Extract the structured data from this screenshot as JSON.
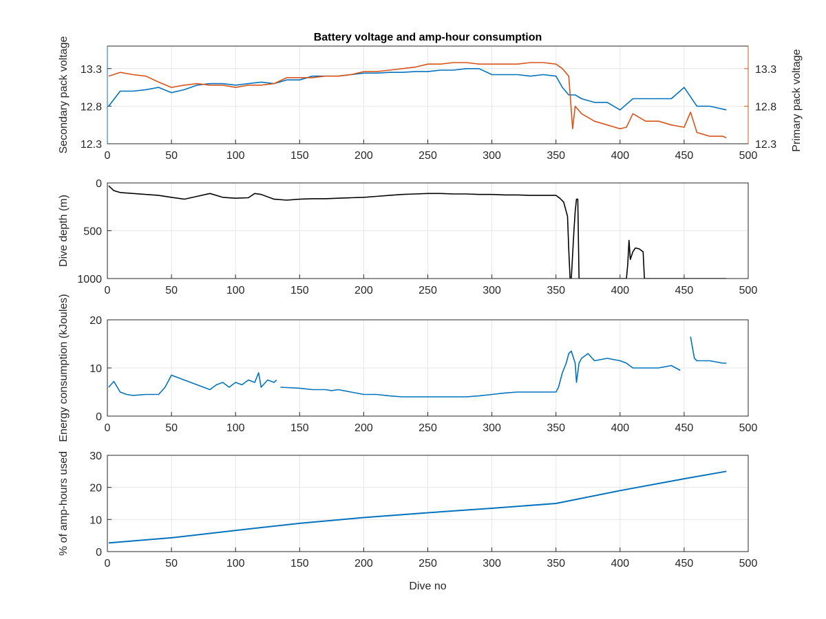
{
  "chart_data": [
    {
      "type": "line",
      "title": "Battery voltage and amp-hour consumption",
      "xlabel": "",
      "ylabel": "Secondary pack voltage",
      "ylabel_right": "Primary pack voltage",
      "xlim": [
        0,
        500
      ],
      "ylim": [
        12.3,
        13.6
      ],
      "ylim_right": [
        12.3,
        13.6
      ],
      "xticks": [
        "0",
        "50",
        "100",
        "150",
        "200",
        "250",
        "300",
        "350",
        "400",
        "450",
        "500"
      ],
      "yticks": [
        "12.3",
        "12.8",
        "13.3"
      ],
      "yticks_right": [
        "12.3",
        "12.8",
        "13.3"
      ],
      "grid": true,
      "colors": {
        "secondary": "#0072BD",
        "primary": "#D95319"
      },
      "series": [
        {
          "axis": "left",
          "x": [
            1,
            10,
            20,
            30,
            40,
            50,
            60,
            70,
            80,
            90,
            100,
            110,
            120,
            130,
            140,
            150,
            160,
            170,
            180,
            190,
            200,
            210,
            220,
            230,
            240,
            250,
            260,
            270,
            280,
            290,
            300,
            310,
            320,
            330,
            340,
            350,
            355,
            360,
            365,
            370,
            380,
            390,
            400,
            410,
            420,
            430,
            440,
            450,
            460,
            470,
            483
          ],
          "y": [
            12.8,
            13.0,
            13.0,
            13.02,
            13.05,
            12.98,
            13.02,
            13.08,
            13.1,
            13.1,
            13.08,
            13.1,
            13.12,
            13.1,
            13.15,
            13.15,
            13.2,
            13.2,
            13.2,
            13.22,
            13.24,
            13.24,
            13.25,
            13.25,
            13.26,
            13.26,
            13.28,
            13.28,
            13.3,
            13.3,
            13.22,
            13.22,
            13.22,
            13.2,
            13.22,
            13.2,
            13.05,
            12.95,
            12.95,
            12.9,
            12.85,
            12.85,
            12.75,
            12.9,
            12.9,
            12.9,
            12.9,
            13.05,
            12.8,
            12.8,
            12.75
          ]
        },
        {
          "axis": "right",
          "x": [
            1,
            10,
            20,
            30,
            40,
            50,
            60,
            70,
            80,
            90,
            100,
            110,
            120,
            130,
            140,
            150,
            160,
            170,
            180,
            190,
            200,
            210,
            220,
            230,
            240,
            250,
            260,
            270,
            280,
            290,
            300,
            310,
            320,
            330,
            340,
            350,
            355,
            360,
            363,
            365,
            370,
            380,
            390,
            400,
            405,
            410,
            420,
            430,
            440,
            450,
            455,
            460,
            470,
            480,
            483
          ],
          "y": [
            13.2,
            13.25,
            13.22,
            13.2,
            13.12,
            13.05,
            13.08,
            13.1,
            13.08,
            13.08,
            13.05,
            13.08,
            13.08,
            13.1,
            13.18,
            13.18,
            13.18,
            13.2,
            13.2,
            13.22,
            13.26,
            13.26,
            13.28,
            13.3,
            13.32,
            13.36,
            13.36,
            13.38,
            13.38,
            13.36,
            13.36,
            13.36,
            13.36,
            13.38,
            13.38,
            13.36,
            13.3,
            13.2,
            12.5,
            12.8,
            12.7,
            12.6,
            12.55,
            12.5,
            12.52,
            12.7,
            12.6,
            12.6,
            12.55,
            12.52,
            12.72,
            12.45,
            12.4,
            12.4,
            12.38
          ]
        }
      ]
    },
    {
      "type": "line",
      "title": "",
      "xlabel": "",
      "ylabel": "Dive depth (m)",
      "xlim": [
        0,
        500
      ],
      "ylim": [
        0,
        1000
      ],
      "y_reversed": true,
      "xticks": [
        "0",
        "50",
        "100",
        "150",
        "200",
        "250",
        "300",
        "350",
        "400",
        "450",
        "500"
      ],
      "yticks": [
        "0",
        "500",
        "1000"
      ],
      "grid": true,
      "color": "#000000",
      "series": [
        {
          "x": [
            1,
            5,
            10,
            20,
            30,
            40,
            50,
            60,
            70,
            80,
            90,
            100,
            110,
            115,
            120,
            130,
            140,
            150,
            160,
            170,
            180,
            190,
            200,
            210,
            220,
            230,
            240,
            250,
            260,
            270,
            280,
            290,
            300,
            310,
            320,
            330,
            340,
            350,
            353,
            356,
            359,
            360,
            361,
            362,
            364,
            365,
            366,
            367,
            368,
            370,
            380,
            390,
            400,
            405,
            406,
            407,
            408,
            410,
            412,
            415,
            418,
            419,
            420,
            425,
            430,
            440,
            450,
            460,
            470,
            480,
            483
          ],
          "y": [
            30,
            80,
            100,
            110,
            120,
            130,
            150,
            170,
            140,
            110,
            150,
            160,
            155,
            110,
            120,
            170,
            180,
            170,
            165,
            165,
            160,
            155,
            150,
            140,
            130,
            120,
            115,
            110,
            110,
            115,
            115,
            120,
            120,
            125,
            125,
            130,
            130,
            130,
            160,
            200,
            350,
            700,
            1000,
            1000,
            500,
            300,
            170,
            170,
            1000,
            1000,
            1000,
            1000,
            1000,
            1000,
            850,
            600,
            800,
            720,
            680,
            690,
            720,
            1000,
            1000,
            1000,
            1000,
            1000,
            1000,
            1000,
            1000,
            1000,
            1000
          ]
        }
      ]
    },
    {
      "type": "line",
      "title": "",
      "xlabel": "",
      "ylabel": "Energy consumption (kJoules)",
      "xlim": [
        0,
        500
      ],
      "ylim": [
        0,
        20
      ],
      "xticks": [
        "0",
        "50",
        "100",
        "150",
        "200",
        "250",
        "300",
        "350",
        "400",
        "450",
        "500"
      ],
      "yticks": [
        "0",
        "10",
        "20"
      ],
      "grid": true,
      "color": "#0072BD",
      "series": [
        {
          "segments": [
            {
              "x": [
                1,
                5,
                10,
                15,
                20,
                30,
                40,
                45,
                50,
                55,
                60,
                70,
                80,
                85,
                90,
                95,
                100,
                105,
                110,
                115,
                118,
                120,
                125,
                130,
                132
              ],
              "y": [
                6.0,
                7.2,
                5.0,
                4.5,
                4.3,
                4.5,
                4.5,
                6.0,
                8.5,
                8.0,
                7.5,
                6.5,
                5.5,
                6.5,
                7.0,
                6.0,
                7.0,
                6.5,
                7.5,
                7.0,
                9.0,
                6.0,
                7.5,
                7.0,
                7.5
              ]
            },
            {
              "x": [
                135,
                150,
                160,
                170,
                175,
                180,
                190,
                200,
                210,
                220,
                230,
                240,
                250,
                260,
                270,
                280,
                290,
                300,
                310,
                320,
                330,
                340,
                350,
                352,
                355,
                358,
                360,
                362,
                365,
                366,
                368,
                370,
                375,
                380,
                390,
                400,
                405,
                410,
                415,
                420,
                430,
                440,
                447
              ],
              "y": [
                6.0,
                5.8,
                5.5,
                5.5,
                5.3,
                5.5,
                5.0,
                4.5,
                4.5,
                4.2,
                4.0,
                4.0,
                4.0,
                4.0,
                4.0,
                4.0,
                4.2,
                4.5,
                4.8,
                5.0,
                5.0,
                5.0,
                5.0,
                6.0,
                9.0,
                11.0,
                13.0,
                13.5,
                11.0,
                7.0,
                11.0,
                12.0,
                13.0,
                11.5,
                12.0,
                11.5,
                11.0,
                10.0,
                10.0,
                10.0,
                10.0,
                10.5,
                9.5
              ]
            },
            {
              "x": [
                455,
                458,
                460,
                470,
                480,
                483
              ],
              "y": [
                16.5,
                12.0,
                11.5,
                11.5,
                11.0,
                11.0
              ]
            }
          ]
        }
      ]
    },
    {
      "type": "line",
      "title": "",
      "xlabel": "Dive no",
      "ylabel": "% of amp-hours used",
      "xlim": [
        0,
        500
      ],
      "ylim": [
        0,
        30
      ],
      "xticks": [
        "0",
        "50",
        "100",
        "150",
        "200",
        "250",
        "300",
        "350",
        "400",
        "450",
        "500"
      ],
      "yticks": [
        "0",
        "10",
        "20",
        "30"
      ],
      "grid": true,
      "color": "#0072BD",
      "series": [
        {
          "x": [
            1,
            50,
            100,
            150,
            200,
            250,
            300,
            350,
            400,
            450,
            483
          ],
          "y": [
            2.7,
            4.3,
            6.6,
            8.8,
            10.6,
            12.1,
            13.5,
            15.0,
            19.0,
            22.7,
            25.0
          ]
        }
      ]
    }
  ]
}
